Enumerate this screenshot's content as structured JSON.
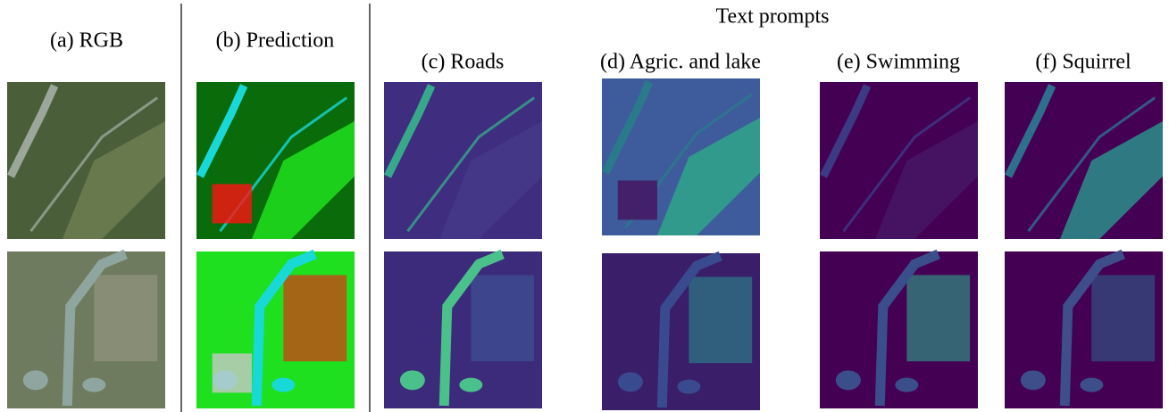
{
  "header": {
    "group_title": "Text prompts"
  },
  "columns": [
    "(a) RGB",
    "(b) Prediction",
    "(c) Roads",
    "(d) Agric. and lake",
    "(e) Swimming",
    "(f) Squirrel"
  ]
}
